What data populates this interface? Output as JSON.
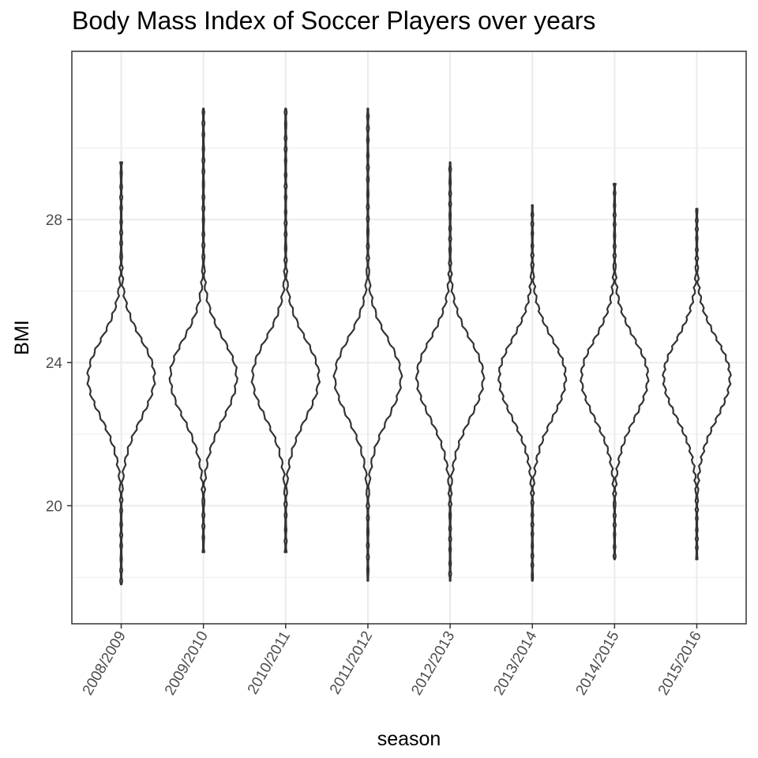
{
  "chart_data": {
    "type": "violin",
    "title": "Body Mass Index of Soccer Players over years",
    "xlabel": "season",
    "ylabel": "BMI",
    "categories": [
      "2008/2009",
      "2009/2010",
      "2010/2011",
      "2011/2012",
      "2012/2013",
      "2013/2014",
      "2014/2015",
      "2015/2016"
    ],
    "ylim": [
      16.7,
      32.7
    ],
    "yticks": [
      20,
      24,
      28
    ],
    "grid": true,
    "colors": {
      "outline": "#333333",
      "grid": "#ebebeb",
      "panel_border": "#333333"
    },
    "violins": [
      {
        "min": 17.8,
        "max": 29.6,
        "median": 23.6
      },
      {
        "min": 18.7,
        "max": 31.1,
        "median": 23.6
      },
      {
        "min": 18.7,
        "max": 31.1,
        "median": 23.6
      },
      {
        "min": 17.9,
        "max": 31.1,
        "median": 23.6
      },
      {
        "min": 17.9,
        "max": 29.6,
        "median": 23.6
      },
      {
        "min": 17.9,
        "max": 28.4,
        "median": 23.6
      },
      {
        "min": 18.5,
        "max": 29.0,
        "median": 23.6
      },
      {
        "min": 18.5,
        "max": 28.3,
        "median": 23.6
      }
    ]
  }
}
